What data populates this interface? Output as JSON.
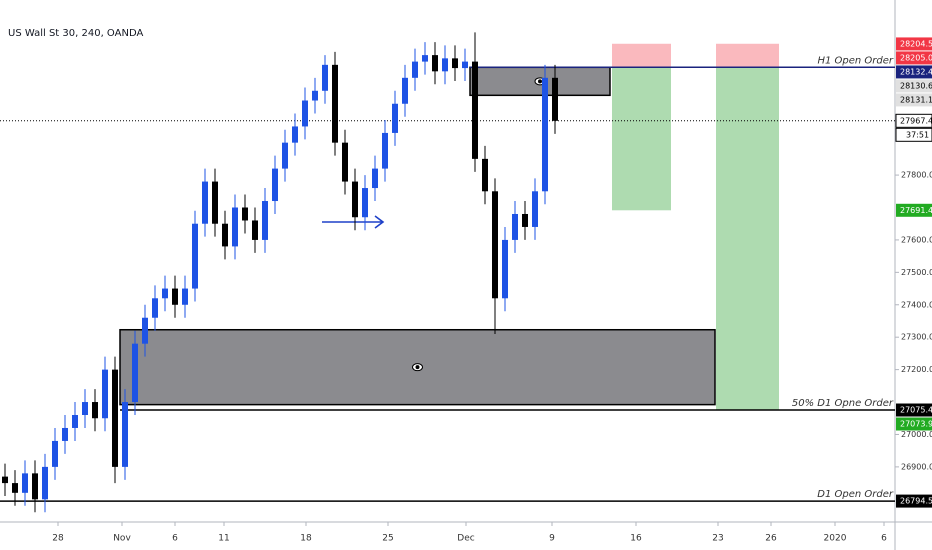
{
  "chart_data": {
    "type": "candlestick",
    "title": "US Wall St 30, 240, OANDA",
    "candles": {
      "open": [
        26870,
        26850,
        26820,
        26880,
        26800,
        26900,
        26980,
        27020,
        27060,
        27100,
        27050,
        27200,
        26900,
        27100,
        27280,
        27360,
        27420,
        27450,
        27400,
        27450,
        27650,
        27780,
        27650,
        27580,
        27700,
        27660,
        27600,
        27720,
        27820,
        27900,
        27950,
        28030,
        28060,
        28140,
        27900,
        27780,
        27670,
        27760,
        27820,
        27930,
        28020,
        28100,
        28150,
        28170,
        28120,
        28160,
        28130,
        28150,
        27850,
        27750,
        27420,
        27600,
        27680,
        27640,
        27750,
        28100
      ],
      "high": [
        26910,
        26890,
        26920,
        26920,
        26940,
        27020,
        27060,
        27100,
        27140,
        27140,
        27240,
        27240,
        27140,
        27320,
        27400,
        27460,
        27490,
        27490,
        27490,
        27690,
        27820,
        27820,
        27690,
        27740,
        27740,
        27700,
        27760,
        27860,
        27940,
        27990,
        28070,
        28100,
        28170,
        28180,
        27940,
        27820,
        27800,
        27860,
        27970,
        28060,
        28140,
        28190,
        28210,
        28210,
        28200,
        28200,
        28190,
        28240,
        27890,
        27790,
        27640,
        27720,
        27720,
        27790,
        28140,
        28140
      ],
      "low": [
        26810,
        26780,
        26780,
        26760,
        26760,
        26860,
        26940,
        26980,
        27020,
        27010,
        27010,
        26850,
        26860,
        27060,
        27240,
        27320,
        27380,
        27360,
        27360,
        27410,
        27610,
        27610,
        27540,
        27540,
        27620,
        27560,
        27560,
        27680,
        27780,
        27860,
        27910,
        27990,
        28020,
        27860,
        27740,
        27630,
        27630,
        27720,
        27780,
        27890,
        27980,
        28060,
        28110,
        28080,
        28080,
        28090,
        28090,
        27810,
        27710,
        27310,
        27380,
        27560,
        27600,
        27600,
        27710,
        27927
      ],
      "close": [
        26850,
        26820,
        26880,
        26800,
        26900,
        26980,
        27020,
        27060,
        27100,
        27050,
        27200,
        26900,
        27100,
        27280,
        27360,
        27420,
        27450,
        27400,
        27450,
        27650,
        27780,
        27650,
        27580,
        27700,
        27660,
        27600,
        27720,
        27820,
        27900,
        27950,
        28030,
        28060,
        28140,
        27900,
        27780,
        27670,
        27760,
        27820,
        27930,
        28020,
        28100,
        28150,
        28170,
        28120,
        28160,
        28130,
        28150,
        27850,
        27750,
        27420,
        27600,
        27680,
        27640,
        27750,
        28100,
        27967.4
      ]
    },
    "up_color": "#1e53e5",
    "down_color": "#000000",
    "xlim": [
      0,
      89.5
    ],
    "ylim": [
      26730,
      28340
    ],
    "xticks": [
      {
        "value": 5.8,
        "label": "28"
      },
      {
        "value": 12.2,
        "label": "Nov"
      },
      {
        "value": 17.5,
        "label": "6"
      },
      {
        "value": 22.4,
        "label": "11"
      },
      {
        "value": 30.6,
        "label": "18"
      },
      {
        "value": 38.8,
        "label": "25"
      },
      {
        "value": 46.6,
        "label": "Dec"
      },
      {
        "value": 55.2,
        "label": "9"
      },
      {
        "value": 63.6,
        "label": "16"
      },
      {
        "value": 71.8,
        "label": "23"
      },
      {
        "value": 77.1,
        "label": "26"
      },
      {
        "value": 83.5,
        "label": "2020"
      },
      {
        "value": 88.4,
        "label": "6"
      }
    ],
    "yticks": [
      {
        "value": 26900,
        "label": "26900.0"
      },
      {
        "value": 27000,
        "label": "27000.0"
      },
      {
        "value": 27200,
        "label": "27200.0"
      },
      {
        "value": 27300,
        "label": "27300.0"
      },
      {
        "value": 27400,
        "label": "27400.0"
      },
      {
        "value": 27500,
        "label": "27500.0"
      },
      {
        "value": 27600,
        "label": "27600.0"
      },
      {
        "value": 27800,
        "label": "27800.0"
      }
    ],
    "zones": [
      {
        "x": [
          47,
          61
        ],
        "y": [
          28046,
          28132.4
        ]
      },
      {
        "x": [
          12,
          71.5
        ],
        "y": [
          27092,
          27323
        ]
      }
    ],
    "positions": [
      {
        "x": [
          61.2,
          67.1
        ],
        "stop": 28205.0,
        "entry": 28132.4,
        "target": 27691.4
      },
      {
        "x": [
          71.6,
          77.9
        ],
        "stop": 28205.0,
        "entry": 28132.4,
        "target": 27075.4
      }
    ],
    "levels": [
      {
        "name": "H1 Open Order",
        "value": 28132.4,
        "x_start": 47,
        "color": "#1a237e"
      },
      {
        "name": "50% D1 Opne Order",
        "value": 27075.4,
        "x_start": 12,
        "color": "#000000"
      },
      {
        "name": "D1 Open Order",
        "value": 26794.5,
        "x_start": 0,
        "color": "#000000"
      }
    ],
    "current_price": 27967.4,
    "countdown": "37:51",
    "price_flags": [
      {
        "value": 28204.5,
        "color": "#f23645"
      },
      {
        "value": 28205.0,
        "label": "28205.0",
        "color": "#f23645"
      },
      {
        "value": 28132.4,
        "color": "#1a237e"
      },
      {
        "value": 28130.6,
        "color": "#e0e0e0"
      },
      {
        "value": 28131.1,
        "color": "#e0e0e0"
      },
      {
        "value": 27967.4,
        "color": "#ffffff"
      },
      {
        "value": 27691.4,
        "color": "#22ab22"
      },
      {
        "value": 27075.4,
        "color": "#000000"
      },
      {
        "value": 27073.9,
        "color": "#22ab22"
      },
      {
        "value": 26794.5,
        "color": "#000000"
      }
    ]
  }
}
